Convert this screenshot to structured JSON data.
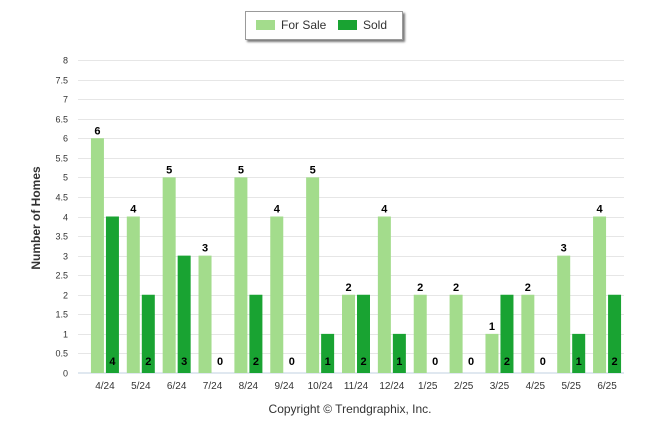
{
  "legend": {
    "for_sale_label": "For Sale",
    "sold_label": "Sold"
  },
  "copyright": "Copyright © Trendgraphix, Inc.",
  "colors": {
    "for_sale": "#a3dc8c",
    "sold": "#19a332",
    "grid": "#e6e6e6",
    "axis": "#c0d0e0",
    "text": "#333333"
  },
  "chart_data": {
    "type": "bar",
    "ylabel": "Number of Homes",
    "xlabel": "",
    "ylim": [
      0,
      8
    ],
    "yticks": [
      "0",
      "0.5",
      "1",
      "1.5",
      "2",
      "2.5",
      "3",
      "3.5",
      "4",
      "4.5",
      "5",
      "5.5",
      "6",
      "6.5",
      "7",
      "7.5",
      "8"
    ],
    "categories": [
      "4/24",
      "5/24",
      "6/24",
      "7/24",
      "8/24",
      "9/24",
      "10/24",
      "11/24",
      "12/24",
      "1/25",
      "2/25",
      "3/25",
      "4/25",
      "5/25",
      "6/25"
    ],
    "series": [
      {
        "name": "For Sale",
        "values": [
          6,
          4,
          5,
          3,
          5,
          4,
          5,
          2,
          4,
          2,
          2,
          1,
          2,
          3,
          4
        ]
      },
      {
        "name": "Sold",
        "values": [
          4,
          2,
          3,
          0,
          2,
          0,
          1,
          2,
          1,
          0,
          0,
          2,
          0,
          1,
          2
        ]
      }
    ],
    "legend_position": "top-center",
    "grid": true
  }
}
